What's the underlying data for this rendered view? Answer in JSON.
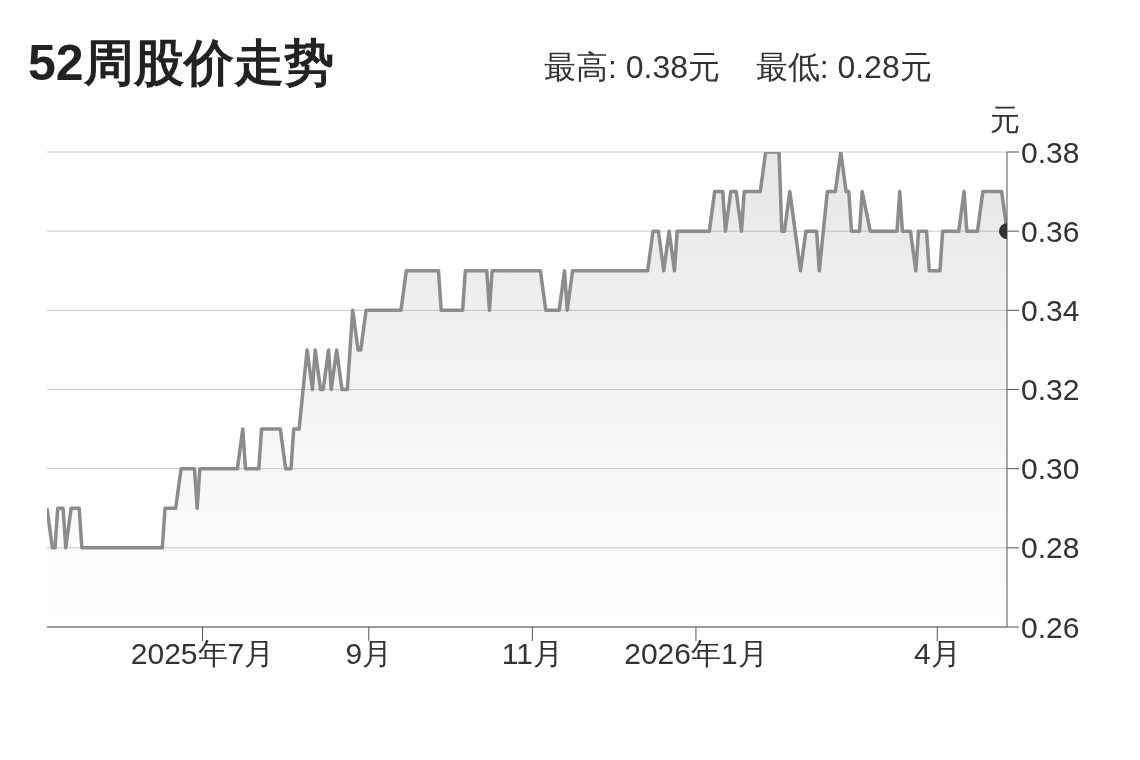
{
  "chart_data": {
    "type": "area",
    "title": "52周股价走势",
    "subtitle": "最高: 0.38元    最低: 0.28元",
    "ylabel": "元",
    "xlim": [
      "2025-05-04",
      "2026-04-27"
    ],
    "xticks": [
      {
        "value": "2025-07-01",
        "label": "2025年7月"
      },
      {
        "value": "2025-09-01",
        "label": "9月"
      },
      {
        "value": "2025-11-01",
        "label": "11月"
      },
      {
        "value": "2026-01-01",
        "label": "2026年1月"
      },
      {
        "value": "2026-04-01",
        "label": "4月"
      }
    ],
    "ylim": [
      0.26,
      0.38
    ],
    "yticks": [
      {
        "value": 0.26,
        "label": "0.26"
      },
      {
        "value": 0.28,
        "label": "0.28"
      },
      {
        "value": 0.3,
        "label": "0.30"
      },
      {
        "value": 0.32,
        "label": "0.32"
      },
      {
        "value": 0.34,
        "label": "0.34"
      },
      {
        "value": 0.36,
        "label": "0.36"
      },
      {
        "value": 0.38,
        "label": "0.38"
      }
    ],
    "grid": "y",
    "series": [
      {
        "color": "#8c8c8c",
        "x": [
          "2025-05-04",
          "2025-05-06",
          "2025-05-07",
          "2025-05-08",
          "2025-05-10",
          "2025-05-11",
          "2025-05-13",
          "2025-05-16",
          "2025-05-17",
          "2025-06-16",
          "2025-06-17",
          "2025-06-21",
          "2025-06-23",
          "2025-06-28",
          "2025-06-29",
          "2025-06-30",
          "2025-07-14",
          "2025-07-16",
          "2025-07-17",
          "2025-07-22",
          "2025-07-23",
          "2025-07-30",
          "2025-08-01",
          "2025-08-03",
          "2025-08-04",
          "2025-08-06",
          "2025-08-09",
          "2025-08-11",
          "2025-08-12",
          "2025-08-14",
          "2025-08-15",
          "2025-08-17",
          "2025-08-18",
          "2025-08-20",
          "2025-08-22",
          "2025-08-24",
          "2025-08-26",
          "2025-08-28",
          "2025-08-29",
          "2025-08-31",
          "2025-09-13",
          "2025-09-15",
          "2025-09-27",
          "2025-09-28",
          "2025-10-06",
          "2025-10-07",
          "2025-10-15",
          "2025-10-16",
          "2025-10-17",
          "2025-11-04",
          "2025-11-06",
          "2025-11-11",
          "2025-11-13",
          "2025-11-14",
          "2025-11-16",
          "2025-12-14",
          "2025-12-16",
          "2025-12-18",
          "2025-12-20",
          "2025-12-22",
          "2025-12-24",
          "2025-12-25",
          "2026-01-06",
          "2026-01-08",
          "2026-01-11",
          "2026-01-12",
          "2026-01-14",
          "2026-01-16",
          "2026-01-18",
          "2026-01-19",
          "2026-01-25",
          "2026-01-27",
          "2026-02-01",
          "2026-02-02",
          "2026-02-03",
          "2026-02-05",
          "2026-02-09",
          "2026-02-11",
          "2026-02-15",
          "2026-02-16",
          "2026-02-19",
          "2026-02-22",
          "2026-02-24",
          "2026-02-26",
          "2026-02-27",
          "2026-02-28",
          "2026-03-03",
          "2026-03-04",
          "2026-03-07",
          "2026-03-17",
          "2026-03-18",
          "2026-03-19",
          "2026-03-22",
          "2026-03-24",
          "2026-03-25",
          "2026-03-28",
          "2026-03-29",
          "2026-04-02",
          "2026-04-03",
          "2026-04-09",
          "2026-04-11",
          "2026-04-12",
          "2026-04-16",
          "2026-04-18",
          "2026-04-25",
          "2026-04-27"
        ],
        "values": [
          0.29,
          0.28,
          0.28,
          0.29,
          0.29,
          0.28,
          0.29,
          0.29,
          0.28,
          0.28,
          0.29,
          0.29,
          0.3,
          0.3,
          0.29,
          0.3,
          0.3,
          0.31,
          0.3,
          0.3,
          0.31,
          0.31,
          0.3,
          0.3,
          0.31,
          0.31,
          0.33,
          0.32,
          0.33,
          0.32,
          0.32,
          0.33,
          0.32,
          0.33,
          0.32,
          0.32,
          0.34,
          0.33,
          0.33,
          0.34,
          0.34,
          0.35,
          0.35,
          0.34,
          0.34,
          0.35,
          0.35,
          0.34,
          0.35,
          0.35,
          0.34,
          0.34,
          0.35,
          0.34,
          0.35,
          0.35,
          0.36,
          0.36,
          0.35,
          0.36,
          0.35,
          0.36,
          0.36,
          0.37,
          0.37,
          0.36,
          0.37,
          0.37,
          0.36,
          0.37,
          0.37,
          0.38,
          0.38,
          0.36,
          0.36,
          0.37,
          0.35,
          0.36,
          0.36,
          0.35,
          0.37,
          0.37,
          0.38,
          0.37,
          0.37,
          0.36,
          0.36,
          0.37,
          0.36,
          0.36,
          0.37,
          0.36,
          0.36,
          0.35,
          0.36,
          0.36,
          0.35,
          0.35,
          0.36,
          0.36,
          0.37,
          0.36,
          0.36,
          0.37,
          0.37,
          0.36
        ]
      },
      {
        "type": "scatter",
        "color": "#333333",
        "x": [
          "2026-04-27"
        ],
        "values": [
          0.36
        ]
      }
    ]
  }
}
